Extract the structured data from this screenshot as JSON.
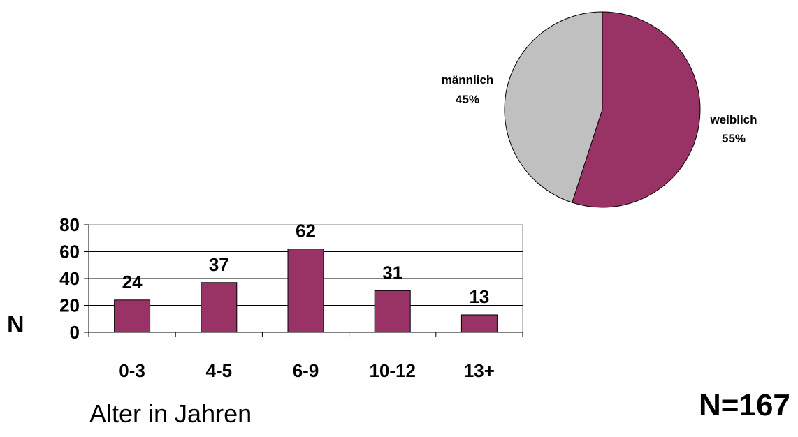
{
  "total_label": "N=167",
  "chart_data": [
    {
      "type": "pie",
      "slices": [
        {
          "name": "weiblich",
          "percent_label": "55%",
          "value": 55,
          "color": "#993366"
        },
        {
          "name": "männlich",
          "percent_label": "45%",
          "value": 45,
          "color": "#c0c0c0"
        }
      ],
      "title": ""
    },
    {
      "type": "bar",
      "categories": [
        "0-3",
        "4-5",
        "6-9",
        "10-12",
        "13+"
      ],
      "values": [
        24,
        37,
        62,
        31,
        13
      ],
      "data_labels": [
        "24",
        "37",
        "62",
        "31",
        "13"
      ],
      "ylabel": "N",
      "xlabel": "Alter in Jahren",
      "ylim": [
        0,
        80
      ],
      "yticks": [
        "0",
        "20",
        "40",
        "60",
        "80"
      ],
      "grid": true,
      "bar_color": "#993366"
    }
  ]
}
